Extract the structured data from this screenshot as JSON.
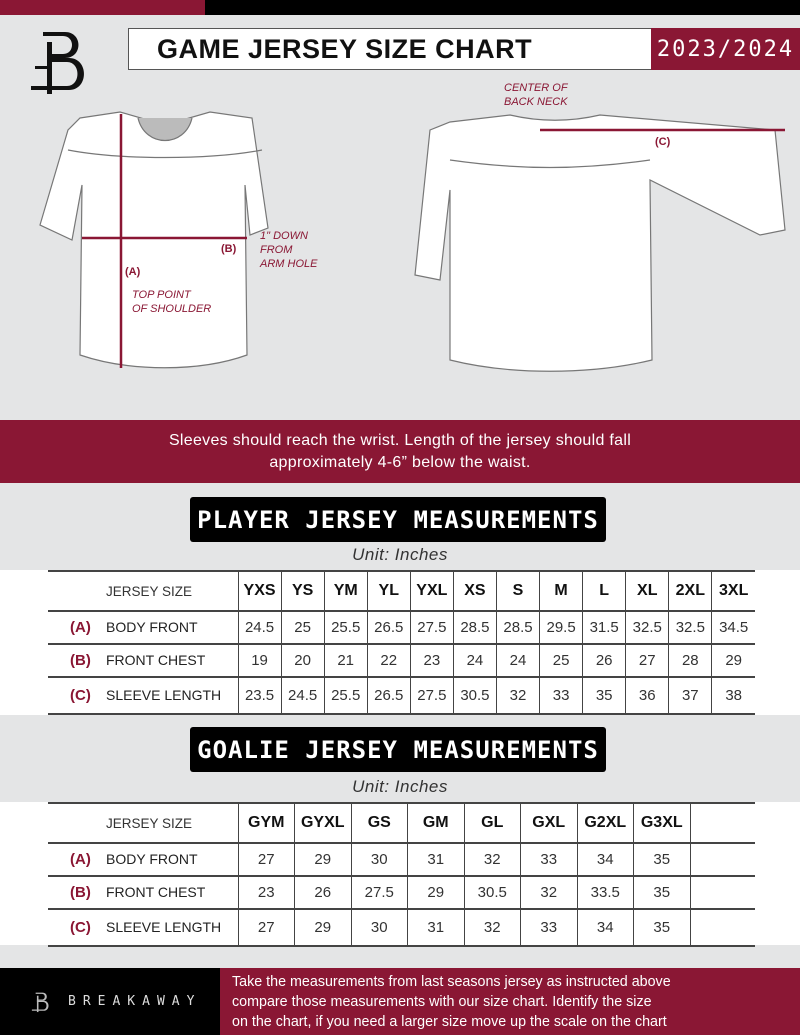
{
  "header": {
    "title": "GAME JERSEY SIZE CHART",
    "season": "2023/2024",
    "brand_color": "#8a1734"
  },
  "diagram": {
    "center_back_neck": [
      "CENTER OF",
      "BACK NECK"
    ],
    "label_a": "(A)",
    "label_b": "(B)",
    "label_c": "(C)",
    "b_note": [
      "1\" DOWN",
      "FROM",
      "ARM HOLE"
    ],
    "a_note": [
      "TOP POINT",
      "OF SHOULDER"
    ]
  },
  "banner": [
    "Sleeves should reach the wrist. Length of the jersey should fall",
    "approximately 4-6” below the waist."
  ],
  "player": {
    "title": "PLAYER JERSEY MEASUREMENTS",
    "unit": "Unit: Inches",
    "header_label": "JERSEY SIZE",
    "sizes": [
      "YXS",
      "YS",
      "YM",
      "YL",
      "YXL",
      "XS",
      "S",
      "M",
      "L",
      "XL",
      "2XL",
      "3XL"
    ],
    "rows": [
      {
        "letter": "(A)",
        "label": "BODY FRONT",
        "values": [
          "24.5",
          "25",
          "25.5",
          "26.5",
          "27.5",
          "28.5",
          "28.5",
          "29.5",
          "31.5",
          "32.5",
          "32.5",
          "34.5"
        ]
      },
      {
        "letter": "(B)",
        "label": "FRONT CHEST",
        "values": [
          "19",
          "20",
          "21",
          "22",
          "23",
          "24",
          "24",
          "25",
          "26",
          "27",
          "28",
          "29"
        ]
      },
      {
        "letter": "(C)",
        "label": "SLEEVE LENGTH",
        "values": [
          "23.5",
          "24.5",
          "25.5",
          "26.5",
          "27.5",
          "30.5",
          "32",
          "33",
          "35",
          "36",
          "37",
          "38"
        ]
      }
    ]
  },
  "goalie": {
    "title": "GOALIE JERSEY MEASUREMENTS",
    "unit": "Unit: Inches",
    "header_label": "JERSEY SIZE",
    "sizes": [
      "GYM",
      "GYXL",
      "GS",
      "GM",
      "GL",
      "GXL",
      "G2XL",
      "G3XL",
      ""
    ],
    "rows": [
      {
        "letter": "(A)",
        "label": "BODY FRONT",
        "values": [
          "27",
          "29",
          "30",
          "31",
          "32",
          "33",
          "34",
          "35",
          ""
        ]
      },
      {
        "letter": "(B)",
        "label": "FRONT CHEST",
        "values": [
          "23",
          "26",
          "27.5",
          "29",
          "30.5",
          "32",
          "33.5",
          "35",
          ""
        ]
      },
      {
        "letter": "(C)",
        "label": "SLEEVE LENGTH",
        "values": [
          "27",
          "29",
          "30",
          "31",
          "32",
          "33",
          "34",
          "35",
          ""
        ]
      }
    ]
  },
  "footer": {
    "brand": "BREAKAWAY",
    "text": [
      "Take the measurements from last seasons jersey as instructed above",
      "compare those measurements  with our size chart. Identify the size",
      "on the chart, if you need a larger size move up the scale on the chart"
    ]
  }
}
